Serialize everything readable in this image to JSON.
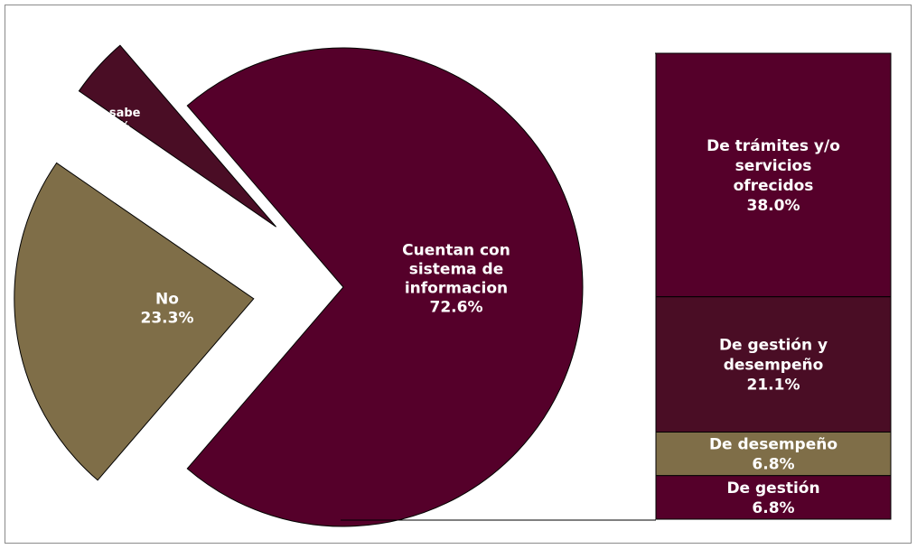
{
  "chart_data": {
    "type": "bar-of-pie",
    "title": "",
    "pie": {
      "slices": [
        {
          "label": "Cuentan con sistema de informacion",
          "lines": [
            "Cuentan con",
            "sistema de",
            "informacion"
          ],
          "value": 72.6,
          "value_text": "72.6%",
          "color": "#55002a",
          "exploded": false
        },
        {
          "label": "No",
          "lines": [
            "No"
          ],
          "value": 23.3,
          "value_text": "23.3%",
          "color": "#7f6e48",
          "exploded": true
        },
        {
          "label": "No sabe",
          "lines": [
            "No sabe"
          ],
          "value": 4.1,
          "value_text": "4.1%",
          "color": "#4a0d25",
          "exploded": true
        }
      ]
    },
    "bar": {
      "segments": [
        {
          "label": "De trámites y/o servicios ofrecidos",
          "lines": [
            "De trámites y/o",
            "servicios",
            "ofrecidos"
          ],
          "value": 38.0,
          "value_text": "38.0%",
          "color": "#55002a"
        },
        {
          "label": "De gestión y desempeño",
          "lines": [
            "De gestión y",
            "desempeño"
          ],
          "value": 21.1,
          "value_text": "21.1%",
          "color": "#4a0d25"
        },
        {
          "label": "De desempeño",
          "lines": [
            "De desempeño"
          ],
          "value": 6.8,
          "value_text": "6.8%",
          "color": "#7f6e48"
        },
        {
          "label": "De gestión",
          "lines": [
            "De gestión"
          ],
          "value": 6.8,
          "value_text": "6.8%",
          "color": "#55002a"
        }
      ]
    }
  }
}
